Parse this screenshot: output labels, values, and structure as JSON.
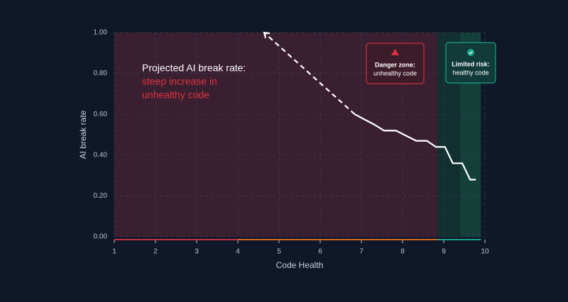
{
  "chart_data": {
    "type": "line",
    "xlabel": "Code Health",
    "ylabel": "AI break rate",
    "xlim": [
      1,
      10
    ],
    "ylim": [
      0,
      1
    ],
    "xticks": [
      1,
      2,
      3,
      4,
      5,
      6,
      7,
      8,
      9,
      10
    ],
    "yticks": [
      {
        "value": 0,
        "label": "0.00"
      },
      {
        "value": 0.2,
        "label": "0.20"
      },
      {
        "value": 0.4,
        "label": "0.40"
      },
      {
        "value": 0.6,
        "label": "0.60"
      },
      {
        "value": 0.8,
        "label": "0.80"
      },
      {
        "value": 1,
        "label": "1.00"
      }
    ],
    "grid": true,
    "series": [
      {
        "color": "#ffffff",
        "dashed": false,
        "x": [
          6.84,
          7.31,
          7.55,
          7.84,
          8.33,
          8.59,
          8.81,
          9.03,
          9.22,
          9.45,
          9.64,
          9.78
        ],
        "values": [
          0.6,
          0.55,
          0.52,
          0.52,
          0.47,
          0.47,
          0.44,
          0.44,
          0.36,
          0.36,
          0.28,
          0.28
        ]
      },
      {
        "color": "#ffffff",
        "dashed": true,
        "x": [
          6.84,
          4.64
        ],
        "values": [
          0.6,
          1.0
        ]
      }
    ],
    "zones": [
      {
        "from": 1,
        "to": 8.85,
        "color": "#3a1f30"
      },
      {
        "from": 8.85,
        "to": 9.9,
        "color": "#11302f"
      },
      {
        "from": 9.4,
        "to": 9.9,
        "color": "#15403a"
      }
    ],
    "baseline": [
      {
        "from": 1,
        "to": 4,
        "color": "#c8313f"
      },
      {
        "from": 4,
        "to": 8.85,
        "color": "#d9691f"
      },
      {
        "from": 8.85,
        "to": 9.9,
        "color": "#17a589"
      }
    ],
    "annotation": {
      "line1": "Projected AI break rate:",
      "line2": "steep increase in",
      "line3": "unhealthy code"
    },
    "danger_box": {
      "title": "Danger zone:",
      "text": "unhealthy code"
    },
    "limited_box": {
      "title": "Limited risk:",
      "text": "healthy code"
    }
  }
}
